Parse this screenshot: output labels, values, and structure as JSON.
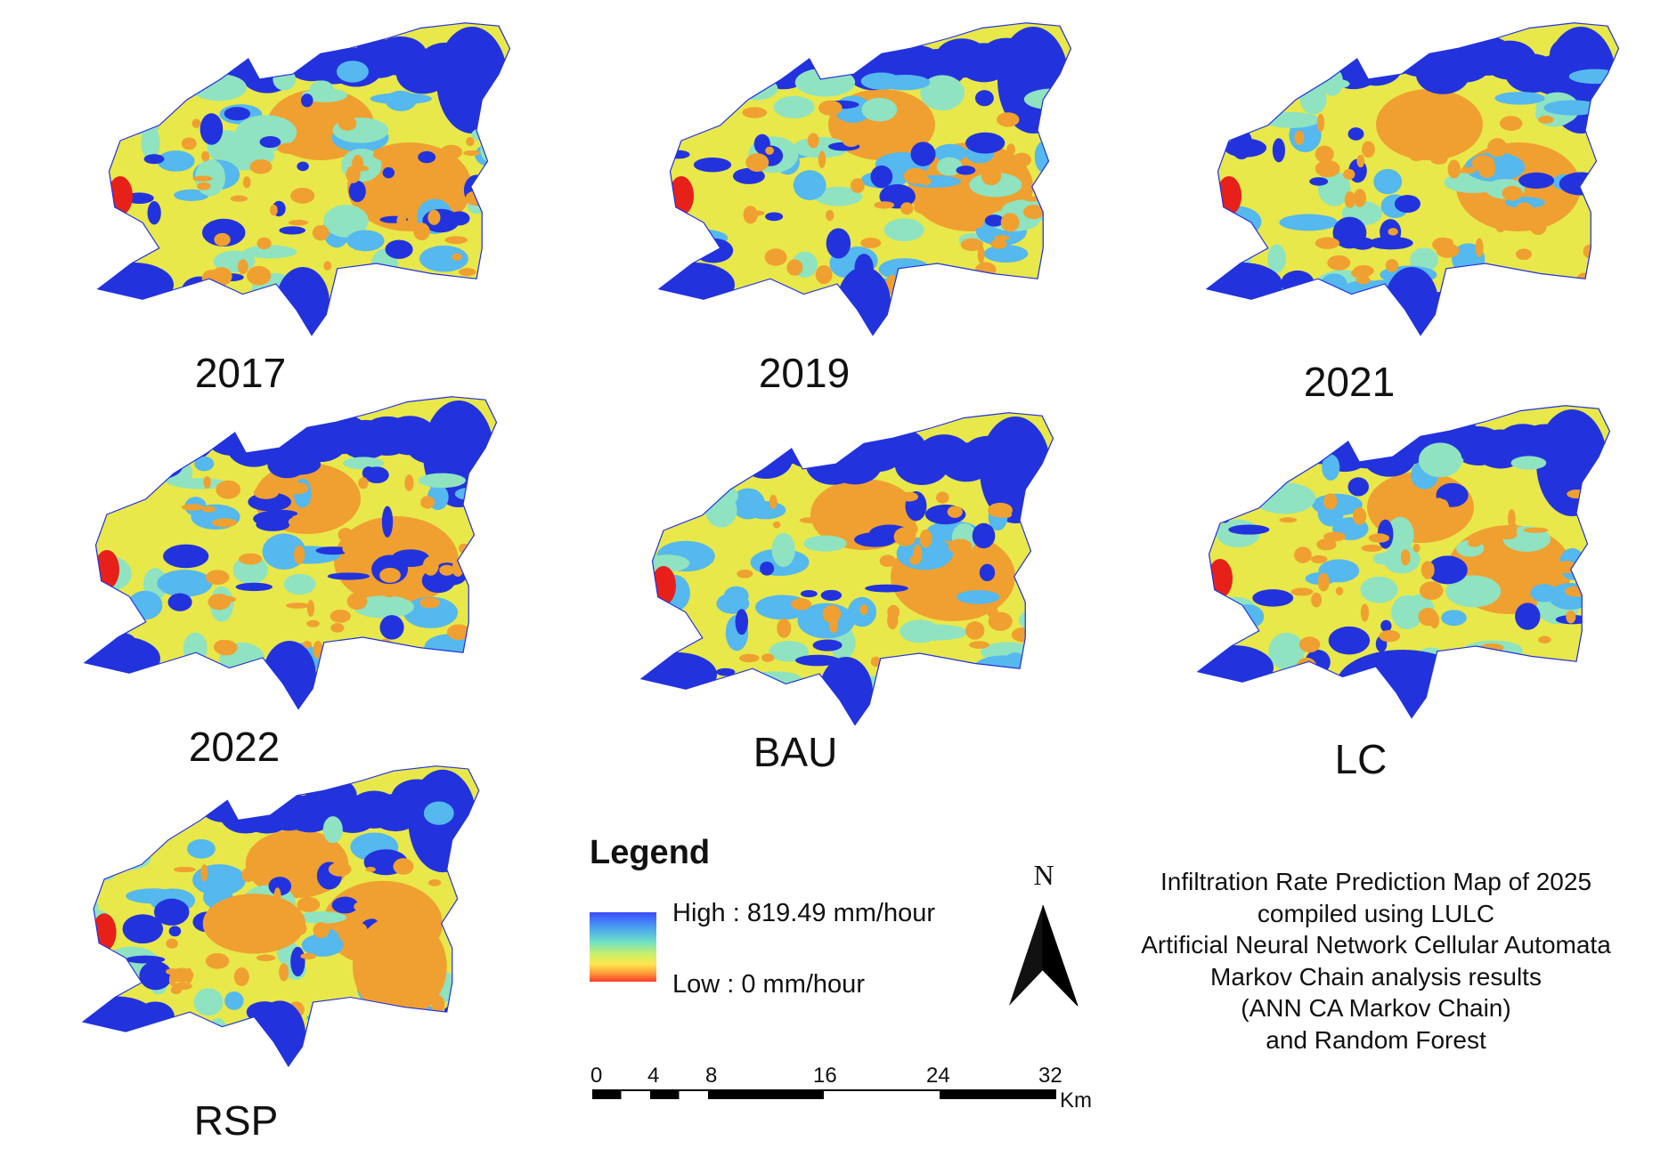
{
  "panels": [
    {
      "label": "2017"
    },
    {
      "label": "2019"
    },
    {
      "label": "2021"
    },
    {
      "label": "2022"
    },
    {
      "label": "BAU"
    },
    {
      "label": "LC"
    },
    {
      "label": "RSP"
    }
  ],
  "legend": {
    "title": "Legend",
    "high_label": "High : 819.49 mm/hour",
    "low_label": "Low : 0 mm/hour",
    "high_value": 819.49,
    "low_value": 0,
    "unit": "mm/hour",
    "ramp_colors": [
      "#3b4bff",
      "#4aa0f0",
      "#6be0c8",
      "#c8f06a",
      "#ffe54a",
      "#ff9a3a",
      "#ff3a2a"
    ]
  },
  "north_arrow": {
    "label": "N"
  },
  "scale_bar": {
    "ticks": [
      "0",
      "4",
      "8",
      "16",
      "24",
      "32"
    ],
    "tick_values": [
      0,
      2,
      4,
      6,
      8,
      16,
      24,
      32
    ],
    "unit": "Km"
  },
  "description": {
    "lines": [
      "Infiltration Rate Prediction Map of 2025",
      "compiled using LULC",
      "Artificial Neural Network Cellular Automata",
      "Markov Chain analysis results",
      "(ANN CA Markov Chain)",
      "and Random Forest"
    ]
  },
  "colors": {
    "high": "#2233dd",
    "mid_high": "#55b8ee",
    "mid": "#8fe3c0",
    "mid_low": "#e8e84a",
    "low": "#f0a030",
    "lowest": "#e8201a"
  }
}
